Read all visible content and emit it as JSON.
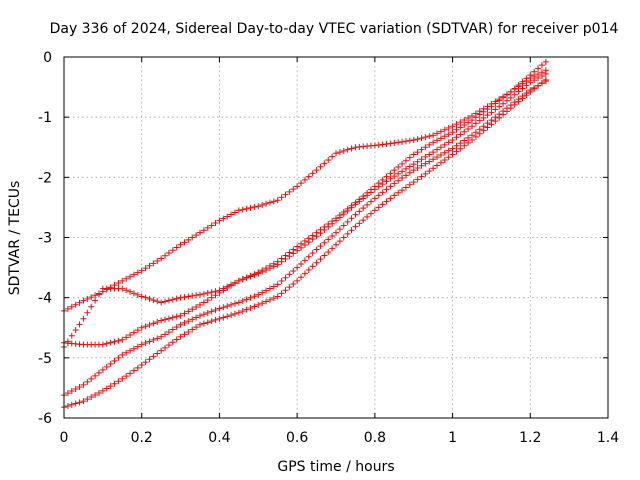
{
  "chart_data": {
    "type": "scatter",
    "title": "Day 336 of 2024, Sidereal Day-to-day VTEC variation (SDTVAR) for receiver p014",
    "xlabel": "GPS time / hours",
    "ylabel": "SDTVAR / TECUs",
    "xlim": [
      0,
      1.4
    ],
    "ylim": [
      -6,
      0
    ],
    "xticks": [
      0,
      0.2,
      0.4,
      0.6,
      0.8,
      1,
      1.2,
      1.4
    ],
    "xtick_labels": [
      "0",
      "0.2",
      "0.4",
      "0.6",
      "0.8",
      "1",
      "1.2",
      "1.4"
    ],
    "yticks": [
      0,
      -1,
      -2,
      -3,
      -4,
      -5,
      -6
    ],
    "ytick_labels": [
      "0",
      "-1",
      "-2",
      "-3",
      "-4",
      "-5",
      "-6"
    ],
    "grid": true,
    "marker": "+",
    "color": "#e01010",
    "series": [
      {
        "name": "track-1",
        "x": [
          0,
          0.05,
          0.1,
          0.15,
          0.2,
          0.25,
          0.3,
          0.35,
          0.4,
          0.45,
          0.5,
          0.55,
          0.6,
          0.65,
          0.7,
          0.75,
          0.8,
          0.85,
          0.9,
          0.95,
          1.0,
          1.05,
          1.1,
          1.15,
          1.2,
          1.24
        ],
        "y": [
          -4.22,
          -4.05,
          -3.9,
          -3.72,
          -3.55,
          -3.35,
          -3.12,
          -2.92,
          -2.72,
          -2.55,
          -2.48,
          -2.38,
          -2.15,
          -1.88,
          -1.6,
          -1.5,
          -1.47,
          -1.43,
          -1.38,
          -1.3,
          -1.15,
          -0.98,
          -0.78,
          -0.58,
          -0.35,
          -0.22
        ]
      },
      {
        "name": "track-2",
        "x": [
          0,
          0.05,
          0.1,
          0.15,
          0.2,
          0.25,
          0.3,
          0.35,
          0.4,
          0.45,
          0.5,
          0.55,
          0.6,
          0.65,
          0.7,
          0.75,
          0.8,
          0.85,
          0.9,
          0.95,
          1.0,
          1.05,
          1.1,
          1.15,
          1.2,
          1.24
        ],
        "y": [
          -4.82,
          -4.35,
          -3.85,
          -3.85,
          -3.98,
          -4.08,
          -4.0,
          -3.95,
          -3.88,
          -3.72,
          -3.58,
          -3.4,
          -3.15,
          -2.92,
          -2.68,
          -2.42,
          -2.15,
          -1.88,
          -1.62,
          -1.42,
          -1.25,
          -1.05,
          -0.82,
          -0.58,
          -0.3,
          -0.08
        ]
      },
      {
        "name": "track-3",
        "x": [
          0,
          0.05,
          0.1,
          0.15,
          0.2,
          0.25,
          0.3,
          0.35,
          0.4,
          0.45,
          0.5,
          0.55,
          0.6,
          0.65,
          0.7,
          0.75,
          0.8,
          0.85,
          0.9,
          0.95,
          1.0,
          1.05,
          1.1,
          1.15,
          1.2,
          1.24
        ],
        "y": [
          -4.75,
          -4.78,
          -4.78,
          -4.7,
          -4.5,
          -4.38,
          -4.3,
          -4.12,
          -3.92,
          -3.72,
          -3.6,
          -3.45,
          -3.22,
          -2.98,
          -2.72,
          -2.45,
          -2.2,
          -1.98,
          -1.78,
          -1.58,
          -1.38,
          -1.15,
          -0.92,
          -0.68,
          -0.42,
          -0.28
        ]
      },
      {
        "name": "track-4",
        "x": [
          0,
          0.05,
          0.1,
          0.15,
          0.2,
          0.25,
          0.3,
          0.35,
          0.4,
          0.45,
          0.5,
          0.55,
          0.6,
          0.65,
          0.7,
          0.75,
          0.8,
          0.85,
          0.9,
          0.95,
          1.0,
          1.05,
          1.1,
          1.15,
          1.2,
          1.24
        ],
        "y": [
          -5.62,
          -5.45,
          -5.2,
          -4.95,
          -4.78,
          -4.65,
          -4.45,
          -4.3,
          -4.18,
          -4.08,
          -3.95,
          -3.78,
          -3.5,
          -3.2,
          -2.92,
          -2.62,
          -2.35,
          -2.1,
          -1.88,
          -1.7,
          -1.52,
          -1.3,
          -1.05,
          -0.8,
          -0.55,
          -0.4
        ]
      },
      {
        "name": "track-5",
        "x": [
          0,
          0.05,
          0.1,
          0.15,
          0.2,
          0.25,
          0.3,
          0.35,
          0.4,
          0.45,
          0.5,
          0.55,
          0.6,
          0.65,
          0.7,
          0.75,
          0.8,
          0.85,
          0.9,
          0.95,
          1.0,
          1.05,
          1.1,
          1.15,
          1.2,
          1.24
        ],
        "y": [
          -5.82,
          -5.72,
          -5.55,
          -5.35,
          -5.12,
          -4.88,
          -4.65,
          -4.45,
          -4.35,
          -4.25,
          -4.12,
          -3.98,
          -3.72,
          -3.42,
          -3.12,
          -2.82,
          -2.55,
          -2.3,
          -2.08,
          -1.85,
          -1.62,
          -1.38,
          -1.12,
          -0.85,
          -0.58,
          -0.38
        ]
      }
    ]
  }
}
